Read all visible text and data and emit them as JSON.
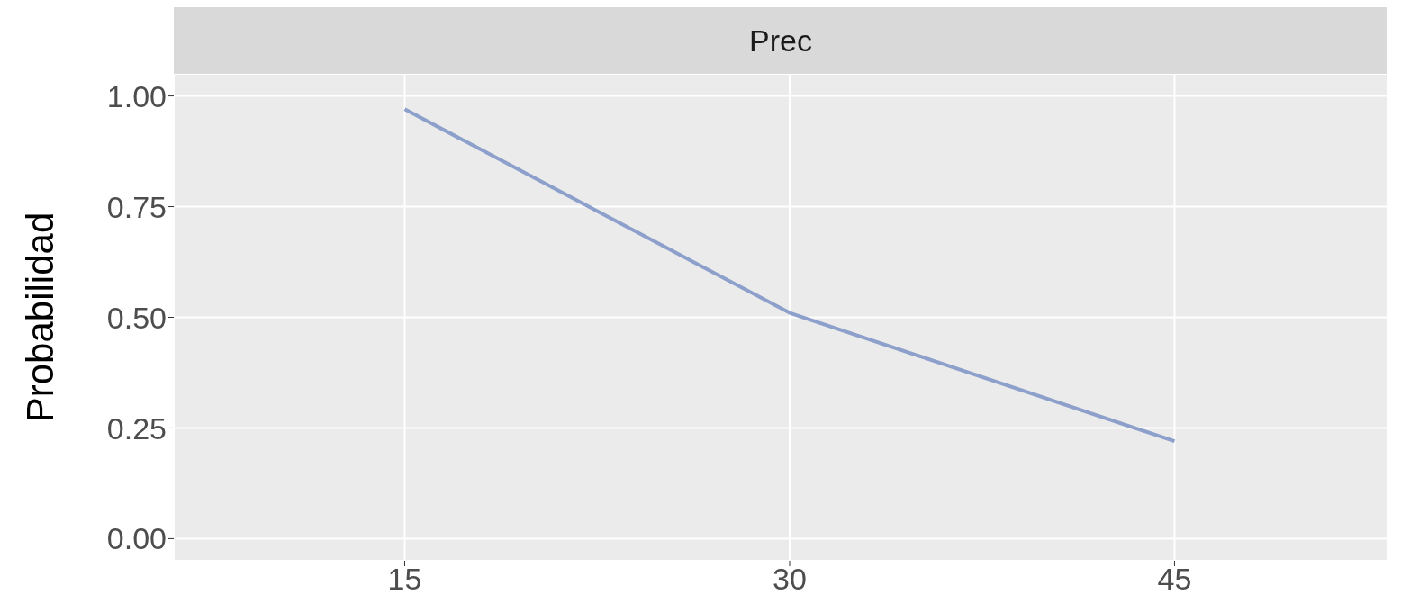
{
  "chart_data": {
    "type": "line",
    "title": "Prec",
    "ylabel": "Probabilidad",
    "x": [
      15,
      30,
      45
    ],
    "series": [
      {
        "color": "#8da0cb",
        "values": [
          0.97,
          0.51,
          0.22
        ]
      }
    ],
    "xlim": [
      6,
      53.3
    ],
    "xticks": [
      15,
      30,
      45
    ],
    "ylim": [
      -0.05,
      1.05
    ],
    "yticks": [
      {
        "value": 0,
        "label": "0.00"
      },
      {
        "value": 0.25,
        "label": "0.25"
      },
      {
        "value": 0.5,
        "label": "0.50"
      },
      {
        "value": 0.75,
        "label": "0.75"
      },
      {
        "value": 1,
        "label": "1.00"
      }
    ],
    "grid": true,
    "legend": false,
    "marker": "none",
    "line_style": "solid"
  }
}
